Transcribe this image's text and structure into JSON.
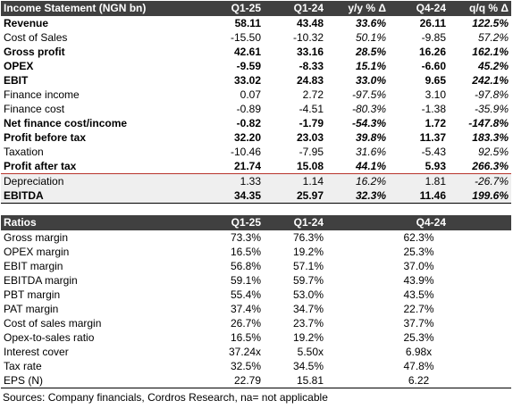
{
  "income": {
    "headers": [
      "Income Statement (NGN bn)",
      "Q1-25",
      "Q1-24",
      "y/y % Δ",
      "Q4-24",
      "q/q % Δ"
    ],
    "rows": [
      {
        "label": "Revenue",
        "v": [
          "58.11",
          "43.48",
          "33.6%",
          "26.11",
          "122.5%"
        ],
        "bold": true
      },
      {
        "label": "Cost of Sales",
        "v": [
          "-15.50",
          "-10.32",
          "50.1%",
          "-9.85",
          "57.2%"
        ],
        "bold": false
      },
      {
        "label": "Gross profit",
        "v": [
          "42.61",
          "33.16",
          "28.5%",
          "16.26",
          "162.1%"
        ],
        "bold": true
      },
      {
        "label": "OPEX",
        "v": [
          "-9.59",
          "-8.33",
          "15.1%",
          "-6.60",
          "45.2%"
        ],
        "bold": true
      },
      {
        "label": "EBIT",
        "v": [
          "33.02",
          "24.83",
          "33.0%",
          "9.65",
          "242.1%"
        ],
        "bold": true
      },
      {
        "label": "Finance income",
        "v": [
          "0.07",
          "2.72",
          "-97.5%",
          "3.10",
          "-97.8%"
        ],
        "bold": false
      },
      {
        "label": "Finance cost",
        "v": [
          "-0.89",
          "-4.51",
          "-80.3%",
          "-1.38",
          "-35.9%"
        ],
        "bold": false
      },
      {
        "label": "Net finance cost/income",
        "v": [
          "-0.82",
          "-1.79",
          "-54.3%",
          "1.72",
          "-147.8%"
        ],
        "bold": true
      },
      {
        "label": "Profit before tax",
        "v": [
          "32.20",
          "23.03",
          "39.8%",
          "11.37",
          "183.3%"
        ],
        "bold": true
      },
      {
        "label": "Taxation",
        "v": [
          "-10.46",
          "-7.95",
          "31.6%",
          "-5.43",
          "92.5%"
        ],
        "bold": false
      },
      {
        "label": "Profit after tax",
        "v": [
          "21.74",
          "15.08",
          "44.1%",
          "5.93",
          "266.3%"
        ],
        "bold": true
      },
      {
        "label": "Depreciation",
        "v": [
          "1.33",
          "1.14",
          "16.2%",
          "1.81",
          "-26.7%"
        ],
        "bold": false
      },
      {
        "label": "EBITDA",
        "v": [
          "34.35",
          "25.97",
          "32.3%",
          "11.46",
          "199.6%"
        ],
        "bold": true
      }
    ]
  },
  "ratios": {
    "headers": [
      "Ratios",
      "Q1-25",
      "Q1-24",
      "",
      "Q4-24",
      ""
    ],
    "rows": [
      {
        "label": "Gross margin",
        "v": [
          "73.3%",
          "76.3%",
          "",
          "62.3%",
          ""
        ]
      },
      {
        "label": "OPEX margin",
        "v": [
          "16.5%",
          "19.2%",
          "",
          "25.3%",
          ""
        ]
      },
      {
        "label": "EBIT margin",
        "v": [
          "56.8%",
          "57.1%",
          "",
          "37.0%",
          ""
        ]
      },
      {
        "label": "EBITDA margin",
        "v": [
          "59.1%",
          "59.7%",
          "",
          "43.9%",
          ""
        ]
      },
      {
        "label": "PBT margin",
        "v": [
          "55.4%",
          "53.0%",
          "",
          "43.5%",
          ""
        ]
      },
      {
        "label": "PAT margin",
        "v": [
          "37.4%",
          "34.7%",
          "",
          "22.7%",
          ""
        ]
      },
      {
        "label": "Cost of sales margin",
        "v": [
          "26.7%",
          "23.7%",
          "",
          "37.7%",
          ""
        ]
      },
      {
        "label": "Opex-to-sales ratio",
        "v": [
          "16.5%",
          "19.2%",
          "",
          "25.3%",
          ""
        ]
      },
      {
        "label": "Interest cover",
        "v": [
          "37.24x",
          "5.50x",
          "",
          "6.98x",
          ""
        ]
      },
      {
        "label": "Tax rate",
        "v": [
          "32.5%",
          "34.5%",
          "",
          "47.8%",
          ""
        ]
      },
      {
        "label": "EPS (N)",
        "v": [
          "22.79",
          "15.81",
          "",
          "6.22",
          ""
        ]
      }
    ]
  },
  "source": "Sources: Company financials, Cordros Research, na= not applicable",
  "colors": {
    "header_bg": "#404040",
    "header_text": "#ffffff",
    "separator": "#b7342b",
    "shade": "#efefef"
  }
}
